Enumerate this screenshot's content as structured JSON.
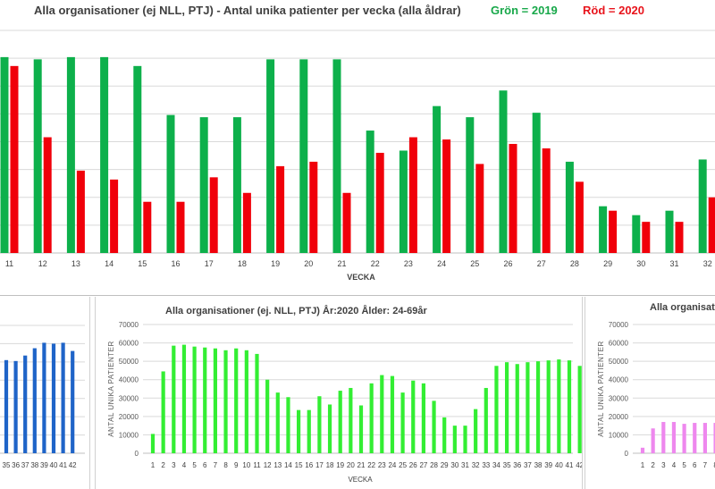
{
  "header": {
    "title": "Alla organisationer (ej NLL,  PTJ)   -   Antal unika patienter per vecka (alla åldrar)",
    "legend_green": "Grön = 2019",
    "legend_red": "Röd = 2020"
  },
  "chart_data": [
    {
      "id": "main",
      "type": "bar",
      "title": "Alla organisationer (ej NLL,  PTJ)   -   Antal unika patienter per vecka (alla åldrar)",
      "xlabel": "VECKA",
      "ylabel": "",
      "categories": [
        "11",
        "12",
        "13",
        "14",
        "15",
        "16",
        "17",
        "18",
        "19",
        "20",
        "21",
        "22",
        "23",
        "24",
        "25",
        "26",
        "27",
        "28",
        "29",
        "30",
        "31",
        "32"
      ],
      "ylim": [
        0,
        100
      ],
      "grid": true,
      "series": [
        {
          "name": "Grön = 2019",
          "color": "#0db04b",
          "values": [
            88,
            87,
            88,
            88,
            84,
            62,
            61,
            61,
            87,
            87,
            87,
            55,
            46,
            66,
            61,
            73,
            63,
            41,
            21,
            17,
            19,
            42
          ]
        },
        {
          "name": "Röd = 2020",
          "color": "#f0000a",
          "values": [
            84,
            52,
            37,
            33,
            23,
            23,
            34,
            27,
            39,
            41,
            27,
            45,
            52,
            51,
            40,
            49,
            47,
            32,
            19,
            14,
            14,
            25
          ]
        }
      ]
    },
    {
      "id": "left",
      "type": "bar",
      "title": "",
      "xlabel": "",
      "ylabel": "",
      "categories": [
        "35",
        "36",
        "37",
        "38",
        "39",
        "40",
        "41",
        "42"
      ],
      "ylim": [
        0,
        70000
      ],
      "grid": true,
      "series": [
        {
          "name": "",
          "color": "#1f64c8",
          "values": [
            51000,
            50500,
            53500,
            57500,
            60500,
            60000,
            60500,
            56000
          ]
        }
      ]
    },
    {
      "id": "center",
      "type": "bar",
      "title": "Alla organisationer (ej. NLL, PTJ)  År:2020  Ålder: 24-69år",
      "xlabel": "VECKA",
      "ylabel": "ANTAL UNIKA PATIENTER",
      "categories": [
        "1",
        "2",
        "3",
        "4",
        "5",
        "6",
        "7",
        "8",
        "9",
        "10",
        "11",
        "12",
        "13",
        "14",
        "15",
        "16",
        "17",
        "18",
        "19",
        "20",
        "21",
        "22",
        "23",
        "24",
        "25",
        "26",
        "27",
        "28",
        "29",
        "30",
        "31",
        "32",
        "33",
        "34",
        "35",
        "36",
        "37",
        "38",
        "39",
        "40",
        "41",
        "42"
      ],
      "y_ticks": [
        "0",
        "10000",
        "20000",
        "30000",
        "40000",
        "50000",
        "60000",
        "70000"
      ],
      "ylim": [
        0,
        70000
      ],
      "grid": true,
      "series": [
        {
          "name": "",
          "color": "#33ee33",
          "values": [
            10500,
            44500,
            58500,
            59000,
            58000,
            57500,
            57000,
            56000,
            57000,
            56000,
            54000,
            40000,
            33000,
            30500,
            23500,
            23500,
            31000,
            26500,
            34000,
            35500,
            26000,
            38000,
            42500,
            42000,
            33000,
            39500,
            38000,
            28500,
            19500,
            15000,
            15000,
            24000,
            35500,
            47500,
            49500,
            48500,
            49500,
            50000,
            50500,
            51000,
            50500,
            47500
          ]
        }
      ]
    },
    {
      "id": "right",
      "type": "bar",
      "title": "Alla organisatio",
      "xlabel": "",
      "ylabel": "ANTAL UNIKA PATIENTER",
      "categories": [
        "1",
        "2",
        "3",
        "4",
        "5",
        "6",
        "7",
        "8"
      ],
      "y_ticks": [
        "0",
        "10000",
        "20000",
        "30000",
        "40000",
        "50000",
        "60000",
        "70000"
      ],
      "ylim": [
        0,
        70000
      ],
      "grid": true,
      "series": [
        {
          "name": "",
          "color": "#ee88ee",
          "values": [
            3000,
            13500,
            17000,
            17000,
            16000,
            16500,
            16500,
            16500
          ]
        }
      ]
    }
  ]
}
